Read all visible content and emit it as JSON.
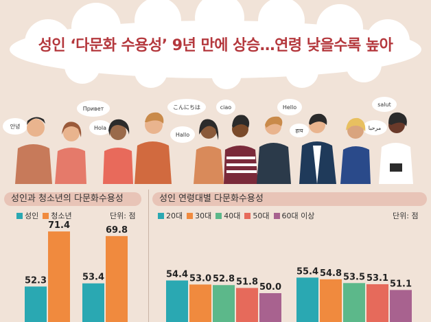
{
  "headline": "성인 ‘다문화 수용성’ 9년 만에 상승…연령 낮을수록 높아",
  "speech": [
    "안녕",
    "Привет",
    "Hola",
    "こんにちは",
    "Hallo",
    "ciao",
    "Hello",
    "हाय",
    "مرحبا",
    "salut"
  ],
  "colors": {
    "adult": "#2aa8b2",
    "youth": "#f08a3e",
    "age20": "#2aa8b2",
    "age30": "#f08a3e",
    "age40": "#5cb88a",
    "age50": "#e66a5b",
    "age60": "#a8628f",
    "title_red": "#b4383d",
    "panel_bg": "#e8c4b7"
  },
  "chart_data": [
    {
      "type": "bar",
      "title": "성인과 청소년의 다문화수용성",
      "unit": "단위: 점",
      "categories": [
        "",
        ""
      ],
      "series": [
        {
          "name": "성인",
          "values": [
            52.3,
            53.4
          ]
        },
        {
          "name": "청소년",
          "values": [
            71.4,
            69.8
          ]
        }
      ]
    },
    {
      "type": "bar",
      "title": "성인 연령대별 다문화수용성",
      "unit": "단위: 점",
      "categories": [
        "",
        ""
      ],
      "series": [
        {
          "name": "20대",
          "values": [
            54.4,
            55.4
          ]
        },
        {
          "name": "30대",
          "values": [
            53.0,
            54.8
          ]
        },
        {
          "name": "40대",
          "values": [
            52.8,
            53.5
          ]
        },
        {
          "name": "50대",
          "values": [
            51.8,
            53.1
          ]
        },
        {
          "name": "60대 이상",
          "values": [
            50.0,
            51.1
          ]
        }
      ]
    }
  ]
}
